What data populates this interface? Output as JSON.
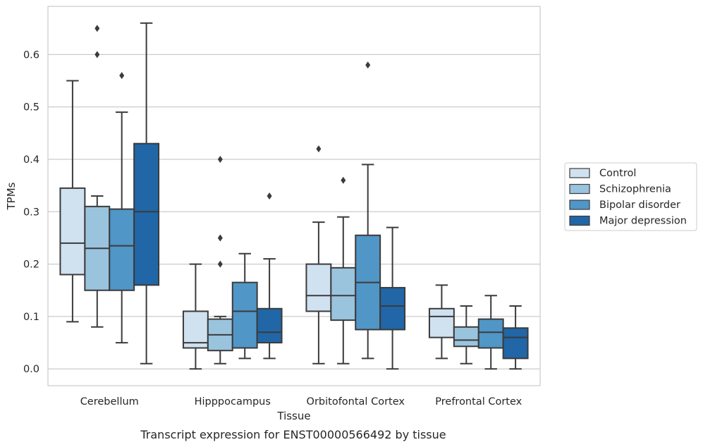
{
  "caption": "Transcript expression for ENST00000566492 by tissue",
  "chart_data": {
    "type": "boxplot",
    "xlabel": "Tissue",
    "ylabel": "TPMs",
    "ylim": [
      -0.032,
      0.692
    ],
    "yticks": [
      0.0,
      0.1,
      0.2,
      0.3,
      0.4,
      0.5,
      0.6
    ],
    "ytick_labels": [
      "0.0",
      "0.1",
      "0.2",
      "0.3",
      "0.4",
      "0.5",
      "0.6"
    ],
    "grid": "horizontal",
    "legend_position": "right",
    "categories": [
      "Cerebellum",
      "Hipppocampus",
      "Orbitofontal Cortex",
      "Prefrontal Cortex"
    ],
    "series": [
      {
        "name": "Control",
        "color": "#d0e1f0",
        "boxes": [
          {
            "whislo": 0.09,
            "q1": 0.18,
            "med": 0.24,
            "q3": 0.345,
            "whishi": 0.55,
            "fliers": []
          },
          {
            "whislo": 0.0,
            "q1": 0.04,
            "med": 0.05,
            "q3": 0.11,
            "whishi": 0.2,
            "fliers": []
          },
          {
            "whislo": 0.01,
            "q1": 0.11,
            "med": 0.14,
            "q3": 0.2,
            "whishi": 0.28,
            "fliers": [
              0.42
            ]
          },
          {
            "whislo": 0.02,
            "q1": 0.06,
            "med": 0.1,
            "q3": 0.115,
            "whishi": 0.16,
            "fliers": []
          }
        ]
      },
      {
        "name": "Schizophrenia",
        "color": "#9ac3de",
        "boxes": [
          {
            "whislo": 0.08,
            "q1": 0.15,
            "med": 0.23,
            "q3": 0.31,
            "whishi": 0.33,
            "fliers": [
              0.6,
              0.65
            ]
          },
          {
            "whislo": 0.01,
            "q1": 0.035,
            "med": 0.065,
            "q3": 0.095,
            "whishi": 0.1,
            "fliers": [
              0.2,
              0.25,
              0.4
            ]
          },
          {
            "whislo": 0.01,
            "q1": 0.093,
            "med": 0.14,
            "q3": 0.193,
            "whishi": 0.29,
            "fliers": [
              0.36
            ]
          },
          {
            "whislo": 0.01,
            "q1": 0.043,
            "med": 0.055,
            "q3": 0.08,
            "whishi": 0.12,
            "fliers": []
          }
        ]
      },
      {
        "name": "Bipolar disorder",
        "color": "#5096c7",
        "boxes": [
          {
            "whislo": 0.05,
            "q1": 0.15,
            "med": 0.235,
            "q3": 0.305,
            "whishi": 0.49,
            "fliers": [
              0.56
            ]
          },
          {
            "whislo": 0.02,
            "q1": 0.04,
            "med": 0.11,
            "q3": 0.165,
            "whishi": 0.22,
            "fliers": []
          },
          {
            "whislo": 0.02,
            "q1": 0.075,
            "med": 0.165,
            "q3": 0.255,
            "whishi": 0.39,
            "fliers": [
              0.58
            ]
          },
          {
            "whislo": 0.0,
            "q1": 0.04,
            "med": 0.07,
            "q3": 0.095,
            "whishi": 0.14,
            "fliers": []
          }
        ]
      },
      {
        "name": "Major depression",
        "color": "#2166a6",
        "boxes": [
          {
            "whislo": 0.01,
            "q1": 0.16,
            "med": 0.3,
            "q3": 0.43,
            "whishi": 0.66,
            "fliers": []
          },
          {
            "whislo": 0.02,
            "q1": 0.05,
            "med": 0.07,
            "q3": 0.115,
            "whishi": 0.21,
            "fliers": [
              0.33
            ]
          },
          {
            "whislo": 0.0,
            "q1": 0.075,
            "med": 0.12,
            "q3": 0.155,
            "whishi": 0.27,
            "fliers": []
          },
          {
            "whislo": 0.0,
            "q1": 0.02,
            "med": 0.06,
            "q3": 0.078,
            "whishi": 0.12,
            "fliers": []
          }
        ]
      }
    ]
  }
}
